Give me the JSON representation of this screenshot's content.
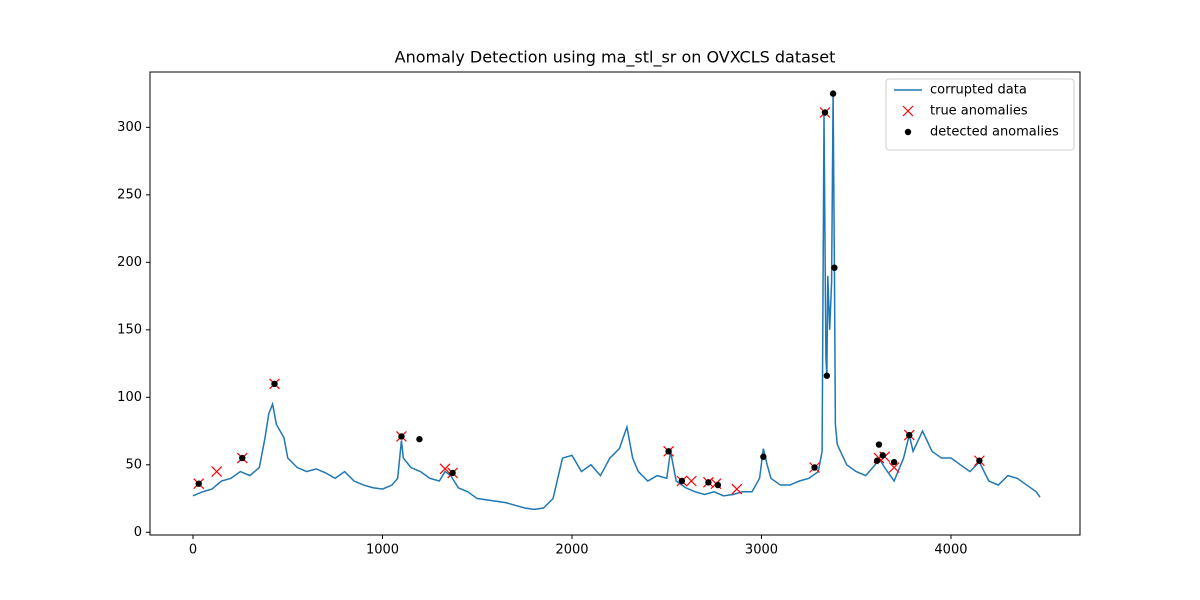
{
  "chart_data": {
    "type": "line",
    "title": "Anomaly Detection using ma_stl_sr on OVXCLS dataset",
    "xlim": [
      -227,
      4681
    ],
    "ylim": [
      -2,
      341
    ],
    "xticks": [
      0,
      1000,
      2000,
      3000,
      4000
    ],
    "yticks": [
      0,
      50,
      100,
      150,
      200,
      250,
      300
    ],
    "legend": "upper right",
    "series": [
      {
        "name": "corrupted data",
        "type": "line",
        "color": "#1f77b4",
        "x": [
          0,
          50,
          100,
          150,
          200,
          250,
          300,
          350,
          380,
          400,
          420,
          440,
          460,
          480,
          500,
          550,
          600,
          650,
          700,
          750,
          800,
          850,
          900,
          950,
          1000,
          1050,
          1080,
          1100,
          1110,
          1150,
          1200,
          1250,
          1300,
          1330,
          1360,
          1400,
          1450,
          1500,
          1550,
          1600,
          1650,
          1700,
          1750,
          1800,
          1850,
          1900,
          1950,
          2000,
          2050,
          2100,
          2150,
          2200,
          2250,
          2290,
          2320,
          2350,
          2400,
          2450,
          2500,
          2520,
          2550,
          2600,
          2650,
          2700,
          2750,
          2800,
          2850,
          2900,
          2950,
          2990,
          3010,
          3030,
          3050,
          3100,
          3150,
          3200,
          3250,
          3300,
          3320,
          3330,
          3340,
          3345,
          3350,
          3360,
          3370,
          3378,
          3385,
          3390,
          3400,
          3450,
          3500,
          3550,
          3600,
          3620,
          3650,
          3700,
          3750,
          3780,
          3800,
          3850,
          3900,
          3950,
          4000,
          4050,
          4100,
          4150,
          4200,
          4250,
          4300,
          4350,
          4400,
          4450,
          4470
        ],
        "values": [
          27,
          30,
          32,
          38,
          40,
          45,
          42,
          48,
          70,
          88,
          95,
          80,
          75,
          70,
          55,
          48,
          45,
          47,
          44,
          40,
          45,
          38,
          35,
          33,
          32,
          35,
          40,
          68,
          55,
          48,
          45,
          40,
          38,
          45,
          42,
          33,
          30,
          25,
          24,
          23,
          22,
          20,
          18,
          17,
          18,
          25,
          55,
          57,
          45,
          50,
          42,
          55,
          62,
          78,
          55,
          45,
          38,
          42,
          40,
          60,
          38,
          33,
          30,
          28,
          30,
          27,
          28,
          30,
          30,
          40,
          62,
          50,
          40,
          35,
          35,
          38,
          40,
          45,
          60,
          310,
          130,
          115,
          190,
          150,
          185,
          325,
          195,
          80,
          65,
          50,
          45,
          42,
          50,
          55,
          48,
          38,
          55,
          72,
          60,
          75,
          60,
          55,
          55,
          50,
          45,
          52,
          38,
          35,
          42,
          40,
          35,
          30,
          26
        ]
      },
      {
        "name": "true anomalies",
        "type": "x-marker",
        "color": "#ff0000",
        "x": [
          30,
          125,
          260,
          430,
          1100,
          1330,
          1370,
          2510,
          2580,
          2630,
          2720,
          2760,
          2870,
          3280,
          3335,
          3620,
          3650,
          3700,
          3780,
          4150
        ],
        "values": [
          36,
          45,
          55,
          110,
          71,
          47,
          44,
          60,
          38,
          38,
          37,
          36,
          32,
          48,
          311,
          55,
          56,
          48,
          72,
          53
        ]
      },
      {
        "name": "detected anomalies",
        "type": "dot",
        "color": "#000000",
        "x": [
          30,
          260,
          430,
          1100,
          1195,
          1370,
          2510,
          2580,
          2720,
          2770,
          3010,
          3280,
          3335,
          3345,
          3378,
          3385,
          3610,
          3620,
          3640,
          3700,
          3780,
          4150
        ],
        "values": [
          36,
          55,
          110,
          71,
          69,
          44,
          60,
          38,
          37,
          35,
          56,
          48,
          311,
          116,
          325,
          196,
          53,
          65,
          57,
          52,
          72,
          53
        ]
      }
    ]
  }
}
